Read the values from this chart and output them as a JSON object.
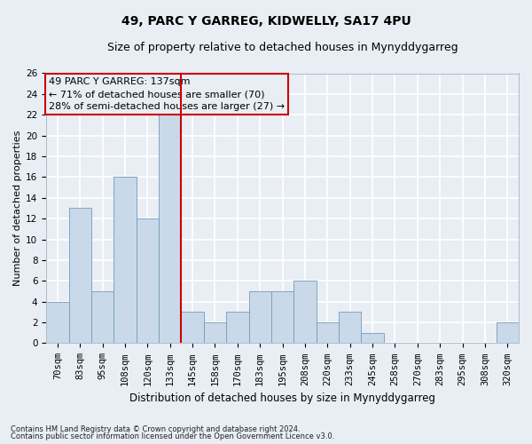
{
  "title1": "49, PARC Y GARREG, KIDWELLY, SA17 4PU",
  "title2": "Size of property relative to detached houses in Mynyddygarreg",
  "xlabel": "Distribution of detached houses by size in Mynyddygarreg",
  "ylabel": "Number of detached properties",
  "categories": [
    "70sqm",
    "83sqm",
    "95sqm",
    "108sqm",
    "120sqm",
    "133sqm",
    "145sqm",
    "158sqm",
    "170sqm",
    "183sqm",
    "195sqm",
    "208sqm",
    "220sqm",
    "233sqm",
    "245sqm",
    "258sqm",
    "270sqm",
    "283sqm",
    "295sqm",
    "308sqm",
    "320sqm"
  ],
  "values": [
    4,
    13,
    5,
    16,
    12,
    22,
    3,
    2,
    3,
    5,
    5,
    6,
    2,
    3,
    1,
    0,
    0,
    0,
    0,
    0,
    2
  ],
  "bar_color": "#c9d9e9",
  "bar_edge_color": "#7799bb",
  "vline_x_index": 5.5,
  "vline_color": "#cc0000",
  "ylim": [
    0,
    26
  ],
  "yticks": [
    0,
    2,
    4,
    6,
    8,
    10,
    12,
    14,
    16,
    18,
    20,
    22,
    24,
    26
  ],
  "annotation_title": "49 PARC Y GARREG: 137sqm",
  "annotation_line1": "← 71% of detached houses are smaller (70)",
  "annotation_line2": "28% of semi-detached houses are larger (27) →",
  "annotation_box_color": "#cc0000",
  "footer1": "Contains HM Land Registry data © Crown copyright and database right 2024.",
  "footer2": "Contains public sector information licensed under the Open Government Licence v3.0.",
  "background_color": "#e8eef4",
  "grid_color": "#ffffff",
  "title_fontsize": 10,
  "subtitle_fontsize": 9,
  "ylabel_fontsize": 8,
  "xlabel_fontsize": 8.5,
  "tick_fontsize": 7.5,
  "ann_fontsize": 8,
  "footer_fontsize": 6
}
